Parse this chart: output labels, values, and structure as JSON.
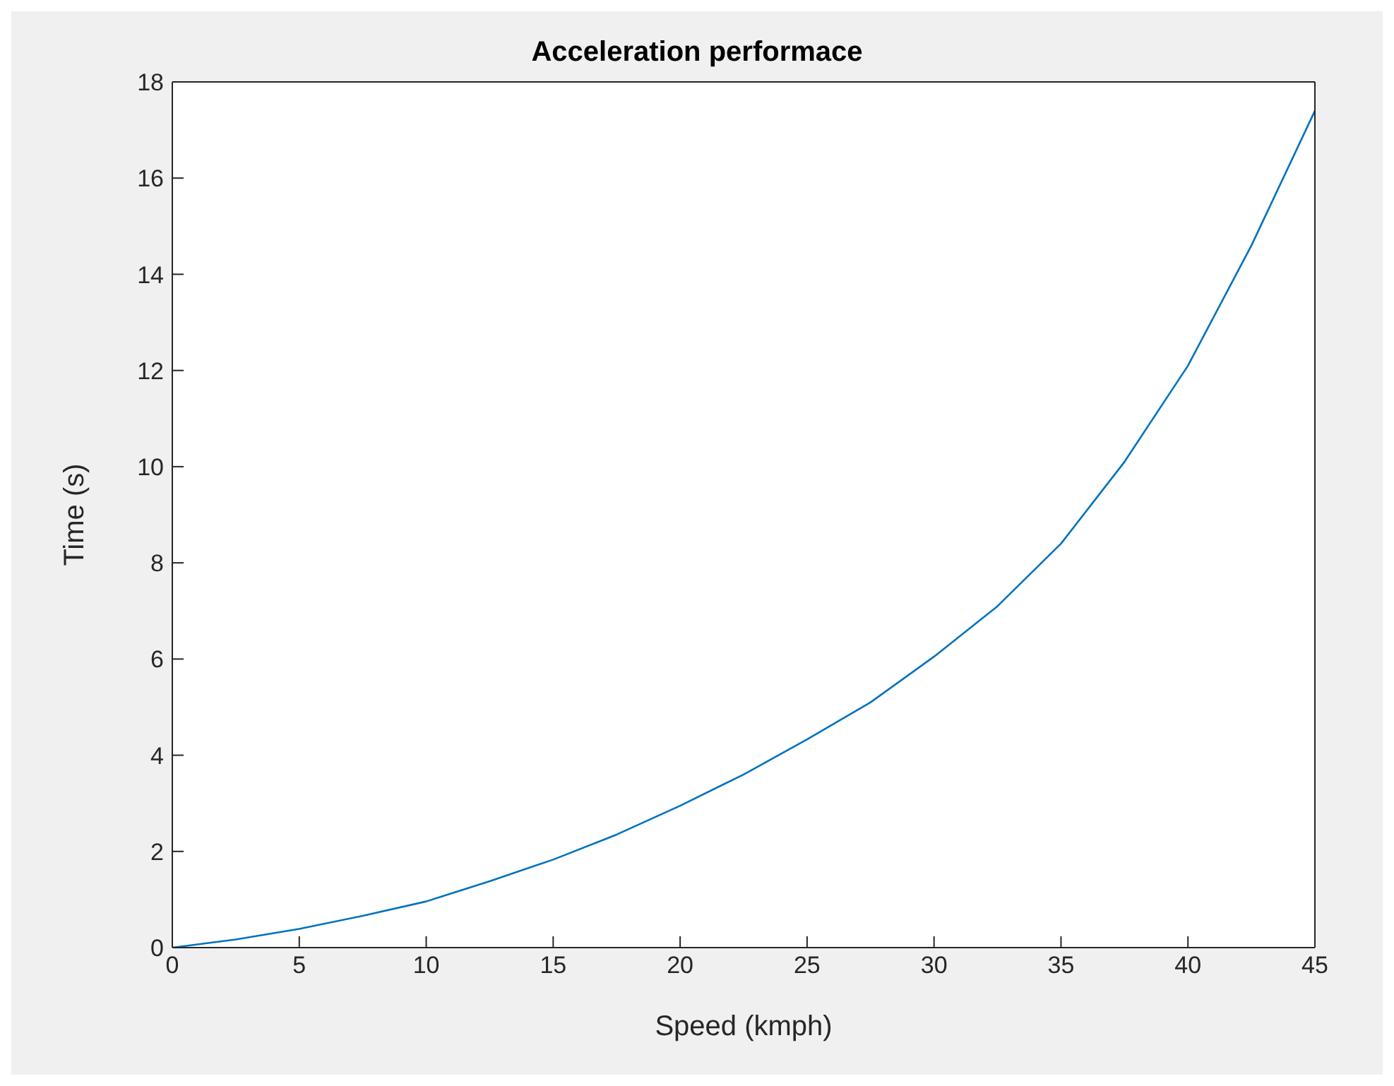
{
  "chart_data": {
    "type": "line",
    "title": "Acceleration performace",
    "xlabel": "Speed (kmph)",
    "ylabel": "Time (s)",
    "x": [
      0,
      2.5,
      5,
      7.5,
      10,
      12.5,
      15,
      17.5,
      20,
      22.5,
      25,
      27.5,
      30,
      32.5,
      35,
      37.5,
      40,
      42.5,
      45
    ],
    "series": [
      {
        "color": "#0072bd",
        "values": [
          0,
          0.17,
          0.39,
          0.66,
          0.96,
          1.38,
          1.83,
          2.35,
          2.95,
          3.6,
          4.33,
          5.1,
          6.05,
          7.1,
          8.4,
          10.1,
          12.1,
          14.6,
          17.4
        ]
      }
    ],
    "xlim": [
      0,
      45
    ],
    "xticks": [
      0,
      5,
      10,
      15,
      20,
      25,
      30,
      35,
      40,
      45
    ],
    "ylim": [
      0,
      18
    ],
    "yticks": [
      0,
      2,
      4,
      6,
      8,
      10,
      12,
      14,
      16,
      18
    ],
    "grid": false,
    "legend": false,
    "marker": "none",
    "line_style": "solid"
  }
}
